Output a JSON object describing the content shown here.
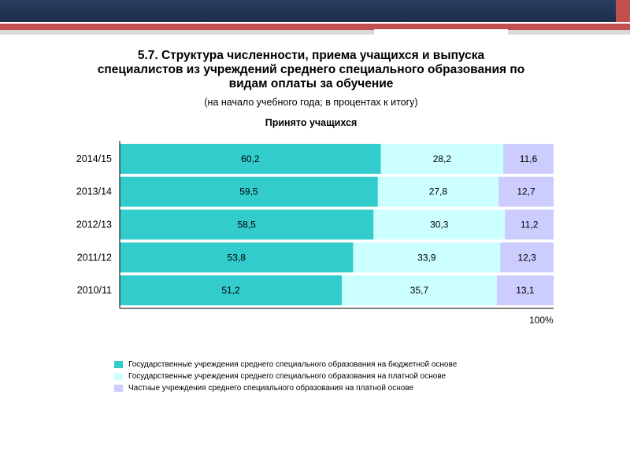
{
  "slide": {
    "title": "5.7. Структура численности, приема учащихся и выпуска специалистов из учреждений среднего специального образования по видам оплаты за обучение",
    "subtitle": "(на начало учебного года; в процентах к итогу)"
  },
  "colors": {
    "header_navy": "#1d2d4a",
    "header_red": "#c0504d",
    "series": [
      "#33cccc",
      "#ccffff",
      "#ccccff"
    ]
  },
  "chart_data": {
    "type": "bar",
    "orientation": "horizontal",
    "stacked": true,
    "title": "Принято учащихся",
    "categories": [
      "2014/15",
      "2013/14",
      "2012/13",
      "2011/12",
      "2010/11"
    ],
    "series": [
      {
        "name": "Государственные учреждения среднего специального образования на бюджетной основе",
        "values": [
          60.2,
          59.5,
          58.5,
          53.8,
          51.2
        ]
      },
      {
        "name": "Государственные учреждения среднего специального образования на платной основе",
        "values": [
          28.2,
          27.8,
          30.3,
          33.9,
          35.7
        ]
      },
      {
        "name": "Частные учреждения среднего специального образования на платной основе",
        "values": [
          11.6,
          12.7,
          11.2,
          12.3,
          13.1
        ]
      }
    ],
    "xlim": [
      0,
      100
    ],
    "axis_end_label": "100%",
    "legend_position": "bottom",
    "grid": false
  }
}
